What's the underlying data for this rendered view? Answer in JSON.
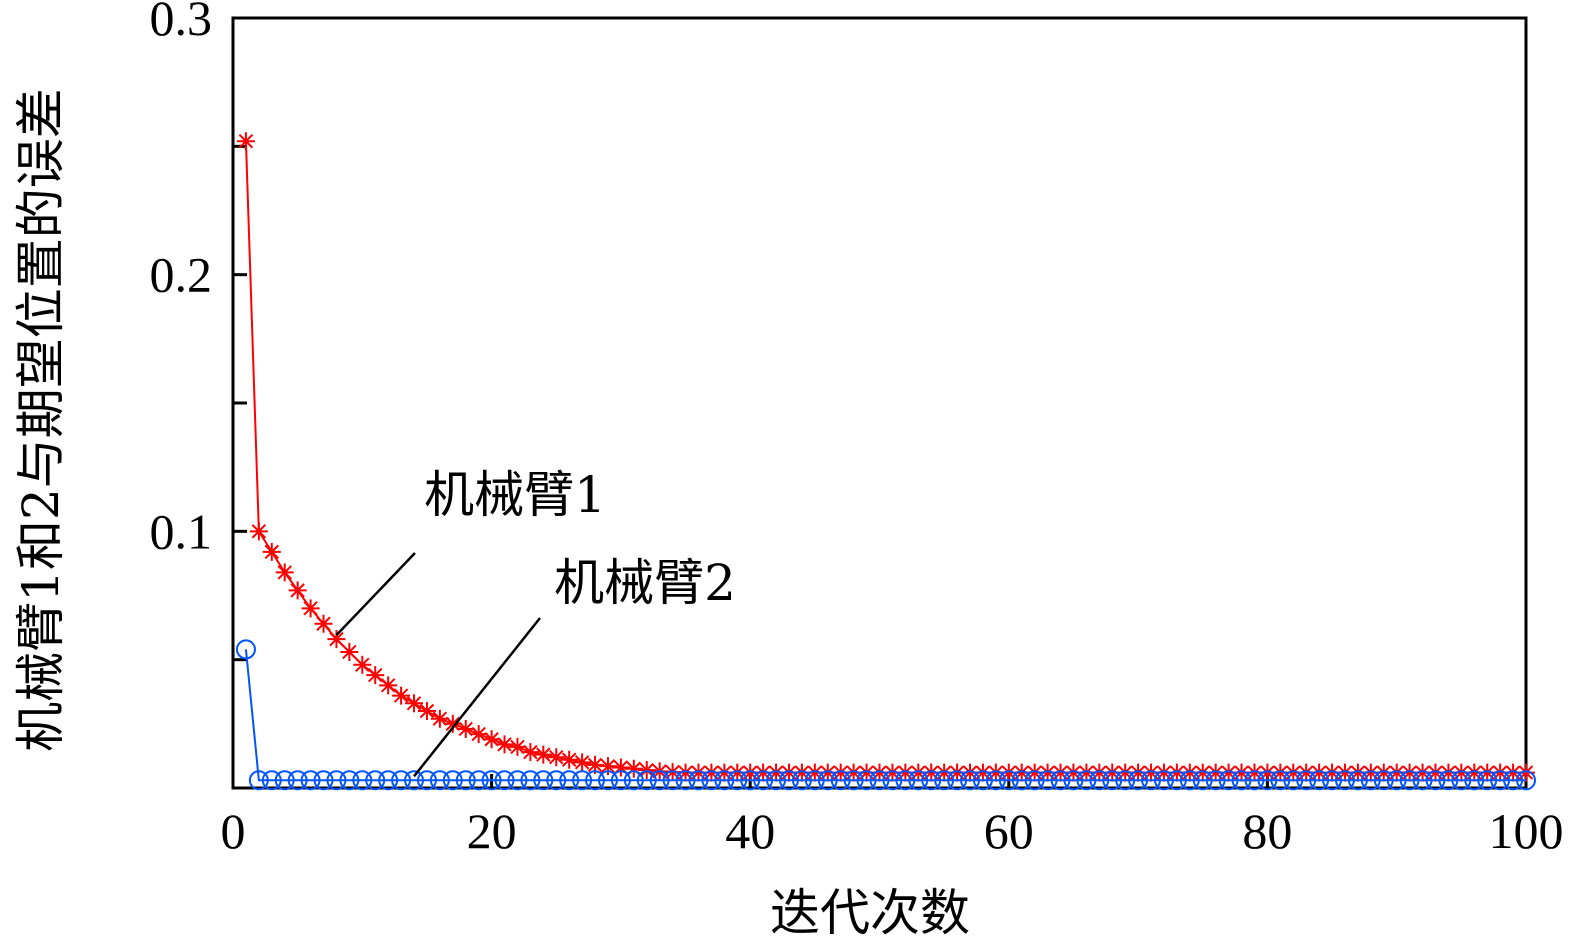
{
  "chart_data": {
    "type": "line",
    "title": "",
    "xlabel": "迭代次数",
    "ylabel": "机械臂1和2与期望位置的误差",
    "xlim": [
      0,
      100
    ],
    "ylim": [
      0,
      0.3
    ],
    "grid": false,
    "x_ticks": [
      "0",
      "20",
      "40",
      "60",
      "80",
      "100"
    ],
    "y_ticks": [
      "0.1",
      "0.2",
      "0.3"
    ],
    "series": [
      {
        "name": "机械臂1",
        "color": "#ff0000",
        "marker": "star",
        "x": [
          1,
          2,
          3,
          4,
          5,
          6,
          7,
          8,
          9,
          10,
          11,
          12,
          13,
          14,
          15,
          16,
          17,
          18,
          19,
          20,
          21,
          22,
          23,
          24,
          25,
          26,
          27,
          28,
          29,
          30,
          31,
          32,
          33,
          34,
          35,
          36,
          37,
          38,
          39,
          40,
          41,
          42,
          43,
          44,
          45,
          46,
          47,
          48,
          49,
          50,
          51,
          52,
          53,
          54,
          55,
          56,
          57,
          58,
          59,
          60,
          61,
          62,
          63,
          64,
          65,
          66,
          67,
          68,
          69,
          70,
          71,
          72,
          73,
          74,
          75,
          76,
          77,
          78,
          79,
          80,
          81,
          82,
          83,
          84,
          85,
          86,
          87,
          88,
          89,
          90,
          91,
          92,
          93,
          94,
          95,
          96,
          97,
          98,
          99,
          100
        ],
        "y": [
          0.252,
          0.1,
          0.092,
          0.084,
          0.077,
          0.07,
          0.064,
          0.058,
          0.053,
          0.048,
          0.044,
          0.04,
          0.036,
          0.033,
          0.03,
          0.027,
          0.025,
          0.023,
          0.021,
          0.019,
          0.017,
          0.016,
          0.014,
          0.013,
          0.012,
          0.011,
          0.01,
          0.009,
          0.0085,
          0.008,
          0.0075,
          0.007,
          0.0065,
          0.0062,
          0.006,
          0.006,
          0.006,
          0.006,
          0.006,
          0.006,
          0.006,
          0.006,
          0.006,
          0.006,
          0.006,
          0.006,
          0.006,
          0.006,
          0.006,
          0.006,
          0.006,
          0.006,
          0.006,
          0.006,
          0.006,
          0.006,
          0.006,
          0.006,
          0.006,
          0.006,
          0.006,
          0.006,
          0.006,
          0.006,
          0.006,
          0.006,
          0.006,
          0.006,
          0.006,
          0.006,
          0.006,
          0.006,
          0.006,
          0.006,
          0.006,
          0.006,
          0.006,
          0.006,
          0.006,
          0.006,
          0.006,
          0.006,
          0.006,
          0.006,
          0.006,
          0.006,
          0.006,
          0.006,
          0.006,
          0.006,
          0.006,
          0.006,
          0.006,
          0.006,
          0.006,
          0.006,
          0.006,
          0.006,
          0.006,
          0.006
        ]
      },
      {
        "name": "机械臂2",
        "color": "#0055ff",
        "marker": "circle",
        "x": [
          1,
          2,
          3,
          4,
          5,
          6,
          7,
          8,
          9,
          10,
          11,
          12,
          13,
          14,
          15,
          16,
          17,
          18,
          19,
          20,
          21,
          22,
          23,
          24,
          25,
          26,
          27,
          28,
          29,
          30,
          31,
          32,
          33,
          34,
          35,
          36,
          37,
          38,
          39,
          40,
          41,
          42,
          43,
          44,
          45,
          46,
          47,
          48,
          49,
          50,
          51,
          52,
          53,
          54,
          55,
          56,
          57,
          58,
          59,
          60,
          61,
          62,
          63,
          64,
          65,
          66,
          67,
          68,
          69,
          70,
          71,
          72,
          73,
          74,
          75,
          76,
          77,
          78,
          79,
          80,
          81,
          82,
          83,
          84,
          85,
          86,
          87,
          88,
          89,
          90,
          91,
          92,
          93,
          94,
          95,
          96,
          97,
          98,
          99,
          100
        ],
        "y": [
          0.054,
          0.003,
          0.003,
          0.003,
          0.003,
          0.003,
          0.003,
          0.003,
          0.003,
          0.003,
          0.003,
          0.003,
          0.003,
          0.003,
          0.003,
          0.003,
          0.003,
          0.003,
          0.003,
          0.003,
          0.003,
          0.003,
          0.003,
          0.003,
          0.003,
          0.003,
          0.003,
          0.003,
          0.003,
          0.003,
          0.003,
          0.003,
          0.003,
          0.003,
          0.003,
          0.003,
          0.003,
          0.003,
          0.003,
          0.003,
          0.003,
          0.003,
          0.003,
          0.003,
          0.003,
          0.003,
          0.003,
          0.003,
          0.003,
          0.003,
          0.003,
          0.003,
          0.003,
          0.003,
          0.003,
          0.003,
          0.003,
          0.003,
          0.003,
          0.003,
          0.003,
          0.003,
          0.003,
          0.003,
          0.003,
          0.003,
          0.003,
          0.003,
          0.003,
          0.003,
          0.003,
          0.003,
          0.003,
          0.003,
          0.003,
          0.003,
          0.003,
          0.003,
          0.003,
          0.003,
          0.003,
          0.003,
          0.003,
          0.003,
          0.003,
          0.003,
          0.003,
          0.003,
          0.003,
          0.003,
          0.003,
          0.003,
          0.003,
          0.003,
          0.003,
          0.003,
          0.003,
          0.003,
          0.003,
          0.003
        ]
      }
    ],
    "annotations": [
      {
        "text": "机械臂1",
        "series": 0,
        "point_x": 8
      },
      {
        "text": "机械臂2",
        "series": 1,
        "point_x": 14
      }
    ]
  }
}
